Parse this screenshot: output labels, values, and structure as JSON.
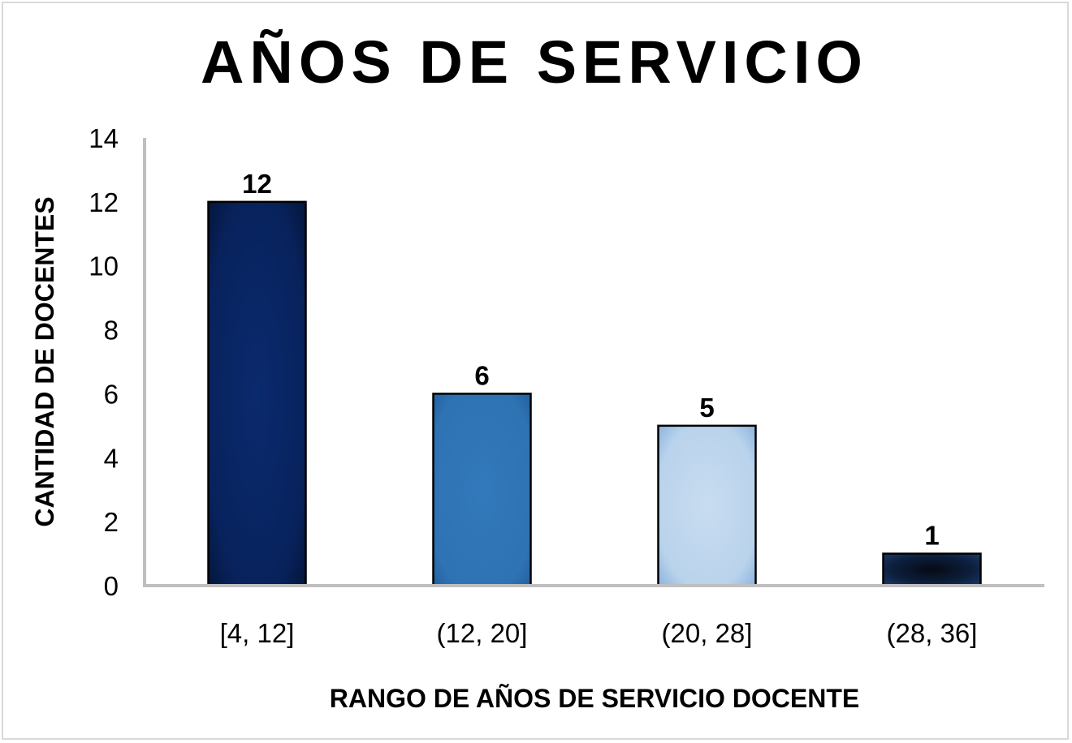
{
  "chart_data": {
    "type": "bar",
    "title": "AÑOS DE SERVICIO",
    "xlabel": "RANGO DE AÑOS DE SERVICIO DOCENTE",
    "ylabel": "CANTIDAD DE DOCENTES",
    "categories": [
      "[4, 12]",
      "(12, 20]",
      "(20, 28]",
      "(28, 36]"
    ],
    "values": [
      12,
      6,
      5,
      1
    ],
    "data_labels": [
      "12",
      "6",
      "5",
      "1"
    ],
    "ylim": [
      0,
      14
    ],
    "yticks": [
      0,
      2,
      4,
      6,
      8,
      10,
      12,
      14
    ],
    "ytick_labels": [
      "0",
      "2",
      "4",
      "6",
      "8",
      "10",
      "12",
      "14"
    ],
    "grid": false,
    "legend": "none",
    "bar_colors": [
      "#0a2a6e",
      "#2e75b6",
      "#bdd7ee",
      "#0b1a33"
    ],
    "bar_edge_color": "#000000",
    "axis_color": "#bfbfbf"
  }
}
